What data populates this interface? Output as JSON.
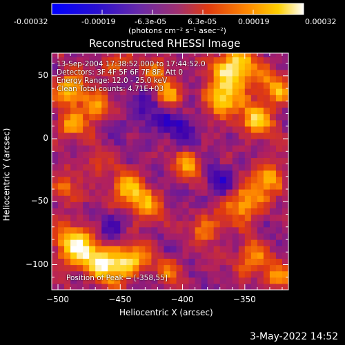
{
  "colorbar": {
    "tick_labels": [
      "-0.00032",
      "-0.00019",
      "-6.3e-05",
      "6.3e-05",
      "0.00019",
      "0.00032"
    ],
    "units_label": "(photons cm⁻² s⁻¹ asec⁻²)"
  },
  "chart_data": {
    "type": "heatmap",
    "title": "Reconstructed RHESSI Image",
    "xlabel": "Heliocentric X (arcsec)",
    "ylabel": "Heliocentric Y (arcsec)",
    "xlim": [
      -505,
      -315
    ],
    "ylim": [
      -120,
      68
    ],
    "x_ticks": [
      -500,
      -450,
      -400,
      -350
    ],
    "y_ticks": [
      -100,
      -50,
      0,
      50
    ],
    "x_tick_labels": [
      "−500",
      "−450",
      "−400",
      "−350"
    ],
    "y_tick_labels": [
      "−100",
      "−50",
      "0",
      "50"
    ],
    "colorbar_range": [
      -0.00032,
      0.00032
    ],
    "colormap": [
      "#0000ff",
      "#3a00b0",
      "#6a1a9a",
      "#b02060",
      "#e03a10",
      "#ff8c00",
      "#ffd000",
      "#ffffff"
    ],
    "peak": [
      -358,
      55
    ],
    "annotations": [
      "13-Sep-2004 17:38:52.000 to 17:44:52.0",
      "Detectors: 3F 4F 5F 6F 7F 8F, Att 0",
      "Energy Range: 12.0 - 25.0 keV",
      "Clean     Total counts: 4.71E+03"
    ],
    "peak_label": "Position of Peak = [-358,55]",
    "hotspots": [
      {
        "x": -358,
        "y": 55,
        "amp": 1.0,
        "r": 12
      },
      {
        "x": -370,
        "y": 30,
        "amp": 0.75,
        "r": 10
      },
      {
        "x": -340,
        "y": 15,
        "amp": 0.7,
        "r": 10
      },
      {
        "x": -325,
        "y": 40,
        "amp": 0.6,
        "r": 9
      },
      {
        "x": -485,
        "y": -85,
        "amp": 0.95,
        "r": 12
      },
      {
        "x": -460,
        "y": -100,
        "amp": 0.85,
        "r": 11
      },
      {
        "x": -440,
        "y": -95,
        "amp": 0.7,
        "r": 9
      },
      {
        "x": -490,
        "y": 40,
        "amp": 0.8,
        "r": 9
      },
      {
        "x": -470,
        "y": 25,
        "amp": 0.65,
        "r": 8
      },
      {
        "x": -490,
        "y": 10,
        "amp": 0.55,
        "r": 8
      },
      {
        "x": -445,
        "y": -40,
        "amp": 0.7,
        "r": 10
      },
      {
        "x": -430,
        "y": -55,
        "amp": 0.6,
        "r": 9
      },
      {
        "x": -410,
        "y": 35,
        "amp": 0.55,
        "r": 8
      },
      {
        "x": -395,
        "y": -20,
        "amp": 0.55,
        "r": 9
      },
      {
        "x": -380,
        "y": -70,
        "amp": 0.5,
        "r": 9
      },
      {
        "x": -350,
        "y": -50,
        "amp": 0.75,
        "r": 10
      },
      {
        "x": -330,
        "y": -30,
        "amp": 0.65,
        "r": 9
      },
      {
        "x": -345,
        "y": -95,
        "amp": 0.6,
        "r": 9
      },
      {
        "x": -325,
        "y": -110,
        "amp": 0.55,
        "r": 8
      },
      {
        "x": -495,
        "y": -40,
        "amp": 0.5,
        "r": 8
      },
      {
        "x": -420,
        "y": 55,
        "amp": 0.45,
        "r": 8
      },
      {
        "x": -455,
        "y": 60,
        "amp": 0.45,
        "r": 7
      },
      {
        "x": -410,
        "y": -105,
        "amp": 0.4,
        "r": 8
      },
      {
        "x": -470,
        "y": -20,
        "amp": 0.4,
        "r": 7
      },
      {
        "x": -455,
        "y": -70,
        "amp": -0.4,
        "r": 10
      },
      {
        "x": -400,
        "y": 10,
        "amp": -0.35,
        "r": 12
      },
      {
        "x": -430,
        "y": 20,
        "amp": -0.3,
        "r": 10
      },
      {
        "x": -370,
        "y": -35,
        "amp": -0.35,
        "r": 10
      }
    ]
  },
  "footer": {
    "date": "3-May-2022 14:52"
  }
}
